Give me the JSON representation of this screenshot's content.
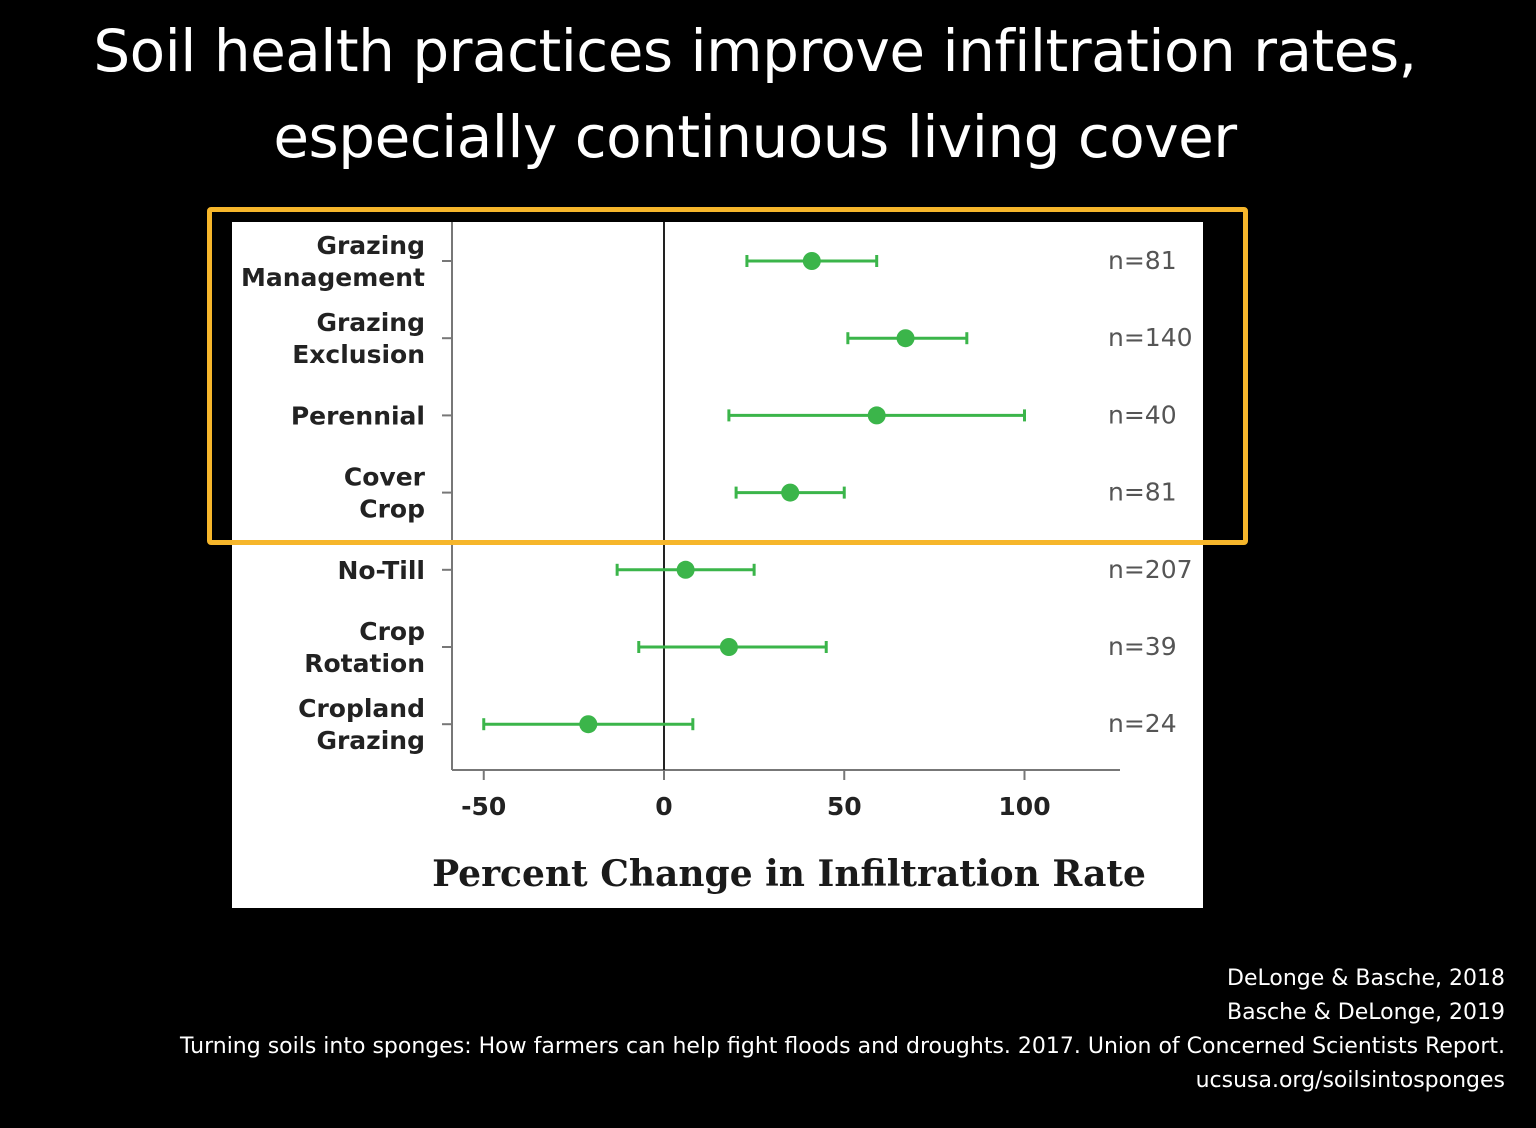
{
  "slide": {
    "title_line1": "Soil health practices improve infiltration rates,",
    "title_line2": "especially continuous living cover"
  },
  "citations": [
    "DeLonge & Basche, 2018",
    "Basche & DeLonge, 2019",
    "Turning soils into sponges: How farmers can help fight floods and droughts. 2017. Union of Concerned Scientists Report.",
    "ucsusa.org/soilsintosponges"
  ],
  "colors": {
    "background": "#000000",
    "panel": "#ffffff",
    "marker": "#3bb54a",
    "highlight": "#f6b62b"
  },
  "chart_data": {
    "type": "scatter",
    "subtype": "forest-plot-with-error-bars",
    "xlabel": "Percent Change in Infiltration Rate",
    "xlim": [
      -60,
      126
    ],
    "xticks": [
      -50,
      0,
      50,
      100
    ],
    "reference_line_x": 0,
    "grid": false,
    "highlighted_categories": [
      "Grazing Management",
      "Grazing Exclusion",
      "Perennial",
      "Cover Crop"
    ],
    "categories": [
      {
        "label_lines": [
          "Grazing",
          "Management"
        ],
        "mean": 41,
        "low": 23,
        "high": 59,
        "n_label": "n=81"
      },
      {
        "label_lines": [
          "Grazing",
          "Exclusion"
        ],
        "mean": 67,
        "low": 51,
        "high": 84,
        "n_label": "n=140"
      },
      {
        "label_lines": [
          "Perennial"
        ],
        "mean": 59,
        "low": 18,
        "high": 100,
        "n_label": "n=40"
      },
      {
        "label_lines": [
          "Cover",
          "Crop"
        ],
        "mean": 35,
        "low": 20,
        "high": 50,
        "n_label": "n=81"
      },
      {
        "label_lines": [
          "No-Till"
        ],
        "mean": 6,
        "low": -13,
        "high": 25,
        "n_label": "n=207"
      },
      {
        "label_lines": [
          "Crop",
          "Rotation"
        ],
        "mean": 18,
        "low": -7,
        "high": 45,
        "n_label": "n=39"
      },
      {
        "label_lines": [
          "Cropland",
          "Grazing"
        ],
        "mean": -21,
        "low": -50,
        "high": 8,
        "n_label": "n=24"
      }
    ]
  }
}
